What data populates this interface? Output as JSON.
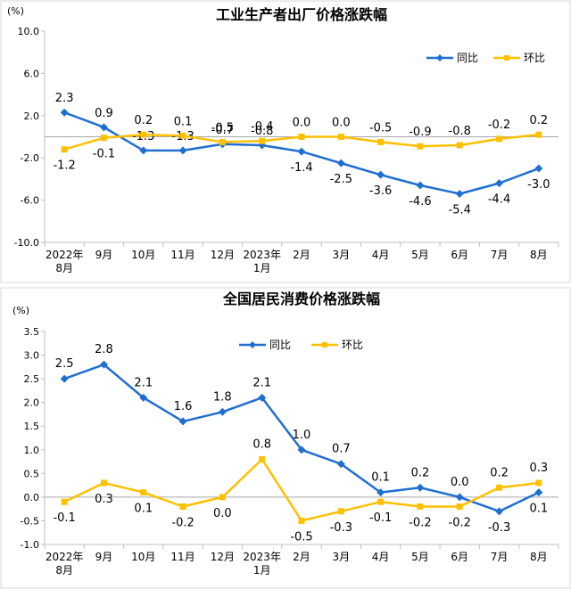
{
  "chart_data": [
    {
      "type": "line",
      "title": "工业生产者出厂价格涨跌幅",
      "ylabel": "(%)",
      "ylim": [
        -10.0,
        10.0
      ],
      "yticks": [
        "10.0",
        "6.0",
        "2.0",
        "-2.0",
        "-6.0",
        "-10.0"
      ],
      "ytick_values": [
        10,
        6,
        2,
        -2,
        -6,
        -10
      ],
      "categories": [
        [
          "2022年",
          "8月"
        ],
        [
          "9月"
        ],
        [
          "10月"
        ],
        [
          "11月"
        ],
        [
          "12月"
        ],
        [
          "2023年",
          "1月"
        ],
        [
          "2月"
        ],
        [
          "3月"
        ],
        [
          "4月"
        ],
        [
          "5月"
        ],
        [
          "6月"
        ],
        [
          "7月"
        ],
        [
          "8月"
        ]
      ],
      "legend": "top-right",
      "series": [
        {
          "name": "同比",
          "color": "#1f6fd1",
          "values": [
            2.3,
            0.9,
            -1.3,
            -1.3,
            -0.7,
            -0.8,
            -1.4,
            -2.5,
            -3.6,
            -4.6,
            -5.4,
            -4.4,
            -3.0
          ],
          "labels": [
            "2.3",
            "0.9",
            "-1.3",
            "-1.3",
            "-0.7",
            "-0.8",
            "-1.4",
            "-2.5",
            "-3.6",
            "-4.6",
            "-5.4",
            "-4.4",
            "-3.0"
          ]
        },
        {
          "name": "环比",
          "color": "#ffc000",
          "values": [
            -1.2,
            -0.1,
            0.2,
            0.1,
            -0.5,
            -0.4,
            0.0,
            0.0,
            -0.5,
            -0.9,
            -0.8,
            -0.2,
            0.2
          ],
          "labels": [
            "-1.2",
            "-0.1",
            "0.2",
            "0.1",
            "-0.5",
            "-0.4",
            "0.0",
            "0.0",
            "-0.5",
            "-0.9",
            "-0.8",
            "-0.2",
            "0.2"
          ]
        }
      ]
    },
    {
      "type": "line",
      "title": "全国居民消费价格涨跌幅",
      "ylabel": "(%)",
      "ylim": [
        -1.0,
        3.5
      ],
      "yticks": [
        "3.5",
        "3.0",
        "2.5",
        "2.0",
        "1.5",
        "1.0",
        "0.5",
        "0.0",
        "-0.5",
        "-1.0"
      ],
      "ytick_values": [
        3.5,
        3.0,
        2.5,
        2.0,
        1.5,
        1.0,
        0.5,
        0.0,
        -0.5,
        -1.0
      ],
      "categories": [
        [
          "2022年",
          "8月"
        ],
        [
          "9月"
        ],
        [
          "10月"
        ],
        [
          "11月"
        ],
        [
          "12月"
        ],
        [
          "2023年",
          "1月"
        ],
        [
          "2月"
        ],
        [
          "3月"
        ],
        [
          "4月"
        ],
        [
          "5月"
        ],
        [
          "6月"
        ],
        [
          "7月"
        ],
        [
          "8月"
        ]
      ],
      "legend": "top-right",
      "series": [
        {
          "name": "同比",
          "color": "#1f6fd1",
          "values": [
            2.5,
            2.8,
            2.1,
            1.6,
            1.8,
            2.1,
            1.0,
            0.7,
            0.1,
            0.2,
            0.0,
            -0.3,
            0.1
          ],
          "labels": [
            "2.5",
            "2.8",
            "2.1",
            "1.6",
            "1.8",
            "2.1",
            "1.0",
            "0.7",
            "0.1",
            "0.2",
            "0.0",
            "-0.3",
            "0.1"
          ]
        },
        {
          "name": "环比",
          "color": "#ffc000",
          "values": [
            -0.1,
            0.3,
            0.1,
            -0.2,
            0.0,
            0.8,
            -0.5,
            -0.3,
            -0.1,
            -0.2,
            -0.2,
            0.2,
            0.3
          ],
          "labels": [
            "-0.1",
            "0.3",
            "0.1",
            "-0.2",
            "0.0",
            "0.8",
            "-0.5",
            "-0.3",
            "-0.1",
            "-0.2",
            "-0.2",
            "0.2",
            "0.3"
          ]
        }
      ]
    }
  ]
}
